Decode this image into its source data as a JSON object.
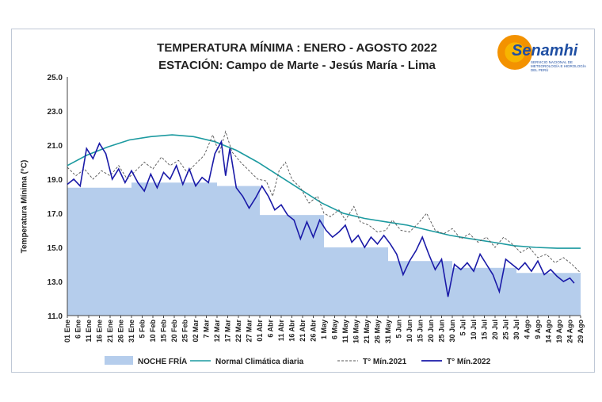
{
  "title": "TEMPERATURA MÍNIMA : ENERO - AGOSTO 2022",
  "subtitle": "ESTACIÓN: Campo de Marte - Jesús María - Lima",
  "logo": {
    "brand": "Senamhi",
    "tagline": "SERVICIO NACIONAL DE METEOROLOGÍA E HIDROLOGÍA DEL PERÚ"
  },
  "colors": {
    "noche_fria": "#b5cdec",
    "normal": "#1c9aa0",
    "t2021": "#555555",
    "t2022": "#1a1aa8"
  },
  "chart_data": {
    "type": "line",
    "ylabel": "Temperatura Mínima (°C)",
    "xlabel": "",
    "ylim": [
      11.0,
      25.0
    ],
    "y_ticks": [
      "11.0",
      "13.0",
      "15.0",
      "17.0",
      "19.0",
      "21.0",
      "23.0",
      "25.0"
    ],
    "x_tick_labels": [
      "01 Ene",
      "6 Ene",
      "11 Ene",
      "16 Ene",
      "21 Ene",
      "26 Ene",
      "31 Ene",
      "5 Feb",
      "10 Feb",
      "15 Feb",
      "20 Feb",
      "25 Feb",
      "02 Mar",
      "7 Mar",
      "12 Mar",
      "17 Mar",
      "22 Mar",
      "27 Mar",
      "01 Abr",
      "6 Abr",
      "11 Abr",
      "16 Abr",
      "21 Abr",
      "26 Abr",
      "1 May",
      "6 May",
      "11 May",
      "16 May",
      "21 May",
      "26 May",
      "31 May",
      "5 Jun",
      "10 Jun",
      "15 Jun",
      "20 Jun",
      "25 Jun",
      "30 Jun",
      "5 Jul",
      "10 Jul",
      "15 Jul",
      "20 Jul",
      "25 Jul",
      "30 Jul",
      "4 Ago",
      "9 Ago",
      "14 Ago",
      "19 Ago",
      "24 Ago",
      "29 Ago"
    ],
    "grid": false,
    "legend_position": "bottom",
    "series": [
      {
        "name": "NOCHE FRÍA",
        "kind": "area",
        "segments": [
          {
            "from": "01 Ene",
            "to": "31 Ene",
            "value": 18.5
          },
          {
            "from": "31 Ene",
            "to": "12 Mar",
            "value": 18.8
          },
          {
            "from": "12 Mar",
            "to": "01 Abr",
            "value": 18.6
          },
          {
            "from": "01 Abr",
            "to": "1 May",
            "value": 16.9
          },
          {
            "from": "1 May",
            "to": "31 May",
            "value": 15.0
          },
          {
            "from": "31 May",
            "to": "30 Jun",
            "value": 14.2
          },
          {
            "from": "30 Jun",
            "to": "30 Jul",
            "value": 13.8
          },
          {
            "from": "30 Jul",
            "to": "29 Ago",
            "value": 13.5
          }
        ]
      },
      {
        "name": "Normal Climática diaria",
        "kind": "line",
        "points": [
          [
            1,
            19.8
          ],
          [
            10,
            20.4
          ],
          [
            20,
            20.9
          ],
          [
            30,
            21.3
          ],
          [
            40,
            21.5
          ],
          [
            50,
            21.6
          ],
          [
            60,
            21.5
          ],
          [
            70,
            21.2
          ],
          [
            80,
            20.7
          ],
          [
            90,
            20.0
          ],
          [
            100,
            19.2
          ],
          [
            110,
            18.4
          ],
          [
            120,
            17.6
          ],
          [
            130,
            17.0
          ],
          [
            140,
            16.7
          ],
          [
            150,
            16.5
          ],
          [
            160,
            16.3
          ],
          [
            170,
            16.0
          ],
          [
            180,
            15.7
          ],
          [
            190,
            15.5
          ],
          [
            200,
            15.3
          ],
          [
            210,
            15.1
          ],
          [
            220,
            15.0
          ],
          [
            230,
            14.95
          ],
          [
            241,
            14.95
          ]
        ]
      },
      {
        "name": "T° Mín.2021",
        "kind": "dashed",
        "points": [
          [
            1,
            19.7
          ],
          [
            5,
            19.2
          ],
          [
            9,
            19.6
          ],
          [
            13,
            19.0
          ],
          [
            17,
            19.5
          ],
          [
            21,
            19.2
          ],
          [
            25,
            19.8
          ],
          [
            29,
            19.0
          ],
          [
            33,
            19.5
          ],
          [
            37,
            20.0
          ],
          [
            41,
            19.6
          ],
          [
            45,
            20.3
          ],
          [
            49,
            19.8
          ],
          [
            53,
            20.1
          ],
          [
            57,
            19.4
          ],
          [
            61,
            19.9
          ],
          [
            65,
            20.4
          ],
          [
            69,
            21.6
          ],
          [
            72,
            20.5
          ],
          [
            75,
            21.8
          ],
          [
            78,
            20.6
          ],
          [
            82,
            20.0
          ],
          [
            86,
            19.5
          ],
          [
            90,
            19.0
          ],
          [
            94,
            18.9
          ],
          [
            97,
            18.0
          ],
          [
            100,
            19.5
          ],
          [
            103,
            20.0
          ],
          [
            106,
            19.0
          ],
          [
            110,
            18.5
          ],
          [
            114,
            17.6
          ],
          [
            118,
            18.0
          ],
          [
            121,
            17.0
          ],
          [
            124,
            16.8
          ],
          [
            128,
            17.2
          ],
          [
            131,
            16.6
          ],
          [
            135,
            17.4
          ],
          [
            138,
            16.5
          ],
          [
            142,
            16.3
          ],
          [
            146,
            15.9
          ],
          [
            150,
            16.0
          ],
          [
            153,
            16.6
          ],
          [
            157,
            16.0
          ],
          [
            161,
            15.9
          ],
          [
            165,
            16.4
          ],
          [
            169,
            17.0
          ],
          [
            173,
            16.0
          ],
          [
            177,
            15.8
          ],
          [
            181,
            16.1
          ],
          [
            185,
            15.5
          ],
          [
            189,
            15.8
          ],
          [
            193,
            15.3
          ],
          [
            197,
            15.6
          ],
          [
            201,
            15.0
          ],
          [
            205,
            15.6
          ],
          [
            209,
            15.2
          ],
          [
            213,
            14.7
          ],
          [
            217,
            15.0
          ],
          [
            221,
            14.4
          ],
          [
            225,
            14.6
          ],
          [
            229,
            14.1
          ],
          [
            233,
            14.4
          ],
          [
            237,
            14.0
          ],
          [
            241,
            13.5
          ]
        ]
      },
      {
        "name": "T° Mín.2022",
        "kind": "line",
        "points": [
          [
            1,
            18.7
          ],
          [
            4,
            19.0
          ],
          [
            7,
            18.6
          ],
          [
            10,
            20.8
          ],
          [
            13,
            20.2
          ],
          [
            16,
            21.1
          ],
          [
            19,
            20.5
          ],
          [
            22,
            19.0
          ],
          [
            25,
            19.6
          ],
          [
            28,
            18.8
          ],
          [
            31,
            19.5
          ],
          [
            34,
            18.8
          ],
          [
            37,
            18.3
          ],
          [
            40,
            19.3
          ],
          [
            43,
            18.5
          ],
          [
            46,
            19.4
          ],
          [
            49,
            19.0
          ],
          [
            52,
            19.8
          ],
          [
            55,
            18.7
          ],
          [
            58,
            19.6
          ],
          [
            61,
            18.6
          ],
          [
            64,
            19.1
          ],
          [
            67,
            18.8
          ],
          [
            70,
            20.5
          ],
          [
            73,
            21.2
          ],
          [
            75,
            19.2
          ],
          [
            77,
            20.8
          ],
          [
            80,
            18.5
          ],
          [
            83,
            18.0
          ],
          [
            86,
            17.3
          ],
          [
            89,
            17.9
          ],
          [
            92,
            18.6
          ],
          [
            95,
            18.0
          ],
          [
            98,
            17.2
          ],
          [
            101,
            17.5
          ],
          [
            104,
            16.9
          ],
          [
            107,
            16.6
          ],
          [
            110,
            15.5
          ],
          [
            113,
            16.5
          ],
          [
            116,
            15.6
          ],
          [
            119,
            16.6
          ],
          [
            122,
            16.0
          ],
          [
            125,
            15.6
          ],
          [
            128,
            15.9
          ],
          [
            131,
            16.3
          ],
          [
            134,
            15.3
          ],
          [
            137,
            15.7
          ],
          [
            140,
            15.0
          ],
          [
            143,
            15.6
          ],
          [
            146,
            15.2
          ],
          [
            149,
            15.7
          ],
          [
            152,
            15.2
          ],
          [
            155,
            14.6
          ],
          [
            158,
            13.4
          ],
          [
            161,
            14.2
          ],
          [
            164,
            14.8
          ],
          [
            167,
            15.6
          ],
          [
            170,
            14.6
          ],
          [
            173,
            13.7
          ],
          [
            176,
            14.3
          ],
          [
            179,
            12.1
          ],
          [
            182,
            14.0
          ],
          [
            185,
            13.7
          ],
          [
            188,
            14.1
          ],
          [
            191,
            13.6
          ],
          [
            194,
            14.6
          ],
          [
            197,
            14.0
          ],
          [
            200,
            13.4
          ],
          [
            203,
            12.4
          ],
          [
            206,
            14.3
          ],
          [
            209,
            14.0
          ],
          [
            212,
            13.7
          ],
          [
            215,
            14.1
          ],
          [
            218,
            13.6
          ],
          [
            221,
            14.2
          ],
          [
            224,
            13.4
          ],
          [
            227,
            13.7
          ],
          [
            230,
            13.3
          ],
          [
            233,
            13.0
          ],
          [
            236,
            13.2
          ],
          [
            238,
            12.9
          ]
        ]
      }
    ]
  }
}
